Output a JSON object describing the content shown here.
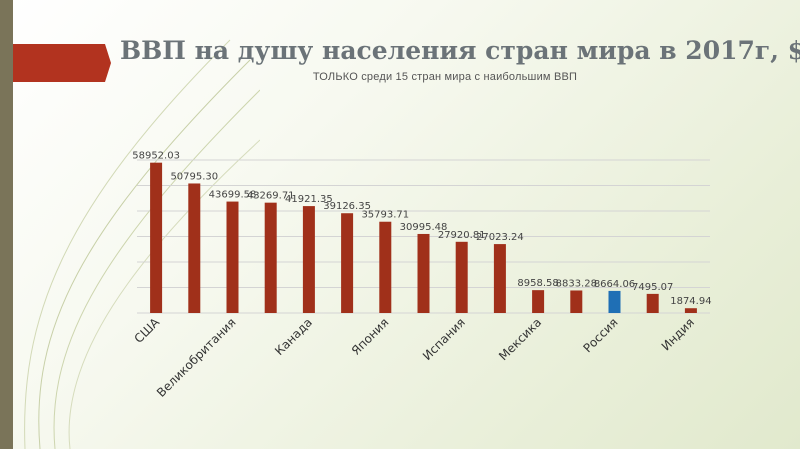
{
  "slide": {
    "title": "ВВП на душу населения стран мира в 2017г, $",
    "subtitle": "ТОЛЬКО среди 15 стран мира с наибольшим ВВП"
  },
  "colors": {
    "bar": "#a0301a",
    "highlight": "#1f6fb5",
    "accent": "#b2331f",
    "sidebar": "#7a7459"
  },
  "chart_data": {
    "type": "bar",
    "title": "ВВП на душу населения стран мира в 2017г, $",
    "subtitle": "ТОЛЬКО среди 15 стран мира с наибольшим ВВП",
    "categories": [
      "США",
      "",
      "Великобритания",
      "",
      "Канада",
      "",
      "Япония",
      "",
      "Испания",
      "",
      "Мексика",
      "",
      "Россия",
      "",
      "Индия"
    ],
    "values": [
      58952.03,
      50795.3,
      43699.58,
      43269.71,
      41921.35,
      39126.35,
      35793.71,
      30995.48,
      27920.81,
      27023.24,
      8958.58,
      8833.28,
      8664.06,
      7495.07,
      1874.94
    ],
    "data_labels": [
      "58952.03",
      "50795.30",
      "43699.58",
      "43269.71",
      "41921.35",
      "39126.35",
      "35793.71",
      "30995.48",
      "27920.81",
      "27023.24",
      "8958.58",
      "8833.28",
      "8664.06",
      "7495.07",
      "1874.94"
    ],
    "highlight_index": 12,
    "ylim": [
      0,
      60000
    ],
    "grid": true,
    "legend": "none"
  }
}
